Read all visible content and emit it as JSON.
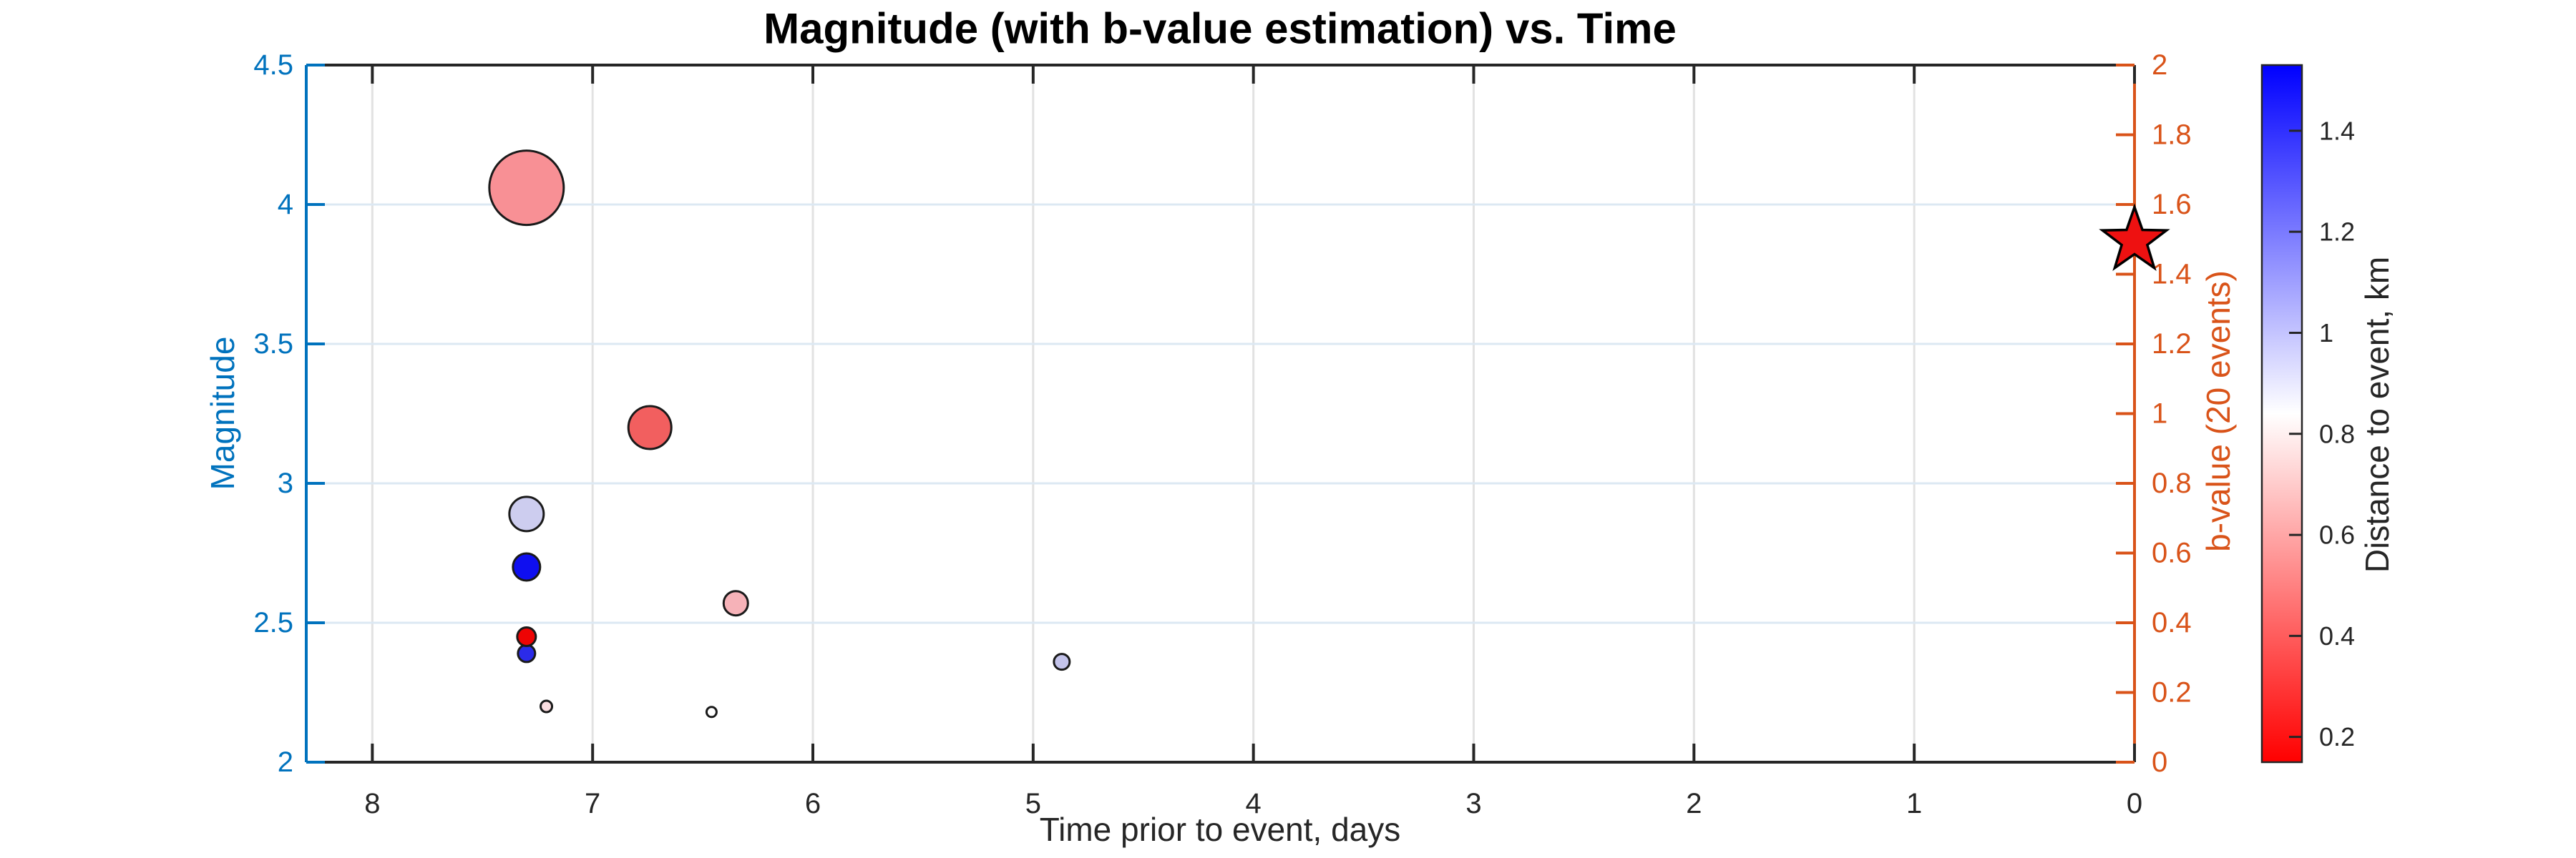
{
  "figure": {
    "background": "#ffffff"
  },
  "chart_data": {
    "type": "scatter",
    "title": "Magnitude (with b-value estimation) vs. Time",
    "title_color": "#000000",
    "xlabel": "Time prior to event, days",
    "xlabel_color": "#262626",
    "x_axis": {
      "lim_left": 8.3,
      "lim_right": 0,
      "reversed": true,
      "axis_color": "#262626",
      "ticks": [
        {
          "v": 8,
          "label": "8"
        },
        {
          "v": 7,
          "label": "7"
        },
        {
          "v": 6,
          "label": "6"
        },
        {
          "v": 5,
          "label": "5"
        },
        {
          "v": 4,
          "label": "4"
        },
        {
          "v": 3,
          "label": "3"
        },
        {
          "v": 2,
          "label": "2"
        },
        {
          "v": 1,
          "label": "1"
        },
        {
          "v": 0,
          "label": "0"
        }
      ]
    },
    "y_axis_left": {
      "label": "Magnitude",
      "lim": [
        2,
        4.5
      ],
      "color": "#0072BD",
      "ticks": [
        {
          "v": 2,
          "label": "2"
        },
        {
          "v": 2.5,
          "label": "2.5"
        },
        {
          "v": 3,
          "label": "3"
        },
        {
          "v": 3.5,
          "label": "3.5"
        },
        {
          "v": 4,
          "label": "4"
        },
        {
          "v": 4.5,
          "label": "4.5"
        }
      ]
    },
    "y_axis_right": {
      "label": "b-value (20 events)",
      "lim": [
        0,
        2
      ],
      "color": "#D95319",
      "ticks": [
        {
          "v": 0,
          "label": "0"
        },
        {
          "v": 0.2,
          "label": "0.2"
        },
        {
          "v": 0.4,
          "label": "0.4"
        },
        {
          "v": 0.6,
          "label": "0.6"
        },
        {
          "v": 0.8,
          "label": "0.8"
        },
        {
          "v": 1,
          "label": "1"
        },
        {
          "v": 1.2,
          "label": "1.2"
        },
        {
          "v": 1.4,
          "label": "1.4"
        },
        {
          "v": 1.6,
          "label": "1.6"
        },
        {
          "v": 1.8,
          "label": "1.8"
        },
        {
          "v": 2,
          "label": "2"
        }
      ]
    },
    "grid": {
      "show": true,
      "horizontal_values": [
        2.5,
        3,
        3.5,
        4
      ],
      "vertical_values": [
        8,
        7,
        6,
        5,
        4,
        3,
        2,
        1
      ],
      "horizontal_color": "#dce8f3",
      "vertical_color": "#e2e2e2"
    },
    "marker_edge_color": "#1a1a1a",
    "points": [
      {
        "time_days": 7.3,
        "magnitude": 4.06,
        "distance_km": 0.55,
        "radius_px": 52,
        "fill": "#f89095"
      },
      {
        "time_days": 6.74,
        "magnitude": 3.2,
        "distance_km": 0.41,
        "radius_px": 30,
        "fill": "#f25f5f"
      },
      {
        "time_days": 7.3,
        "magnitude": 2.89,
        "distance_km": 0.98,
        "radius_px": 24,
        "fill": "#cdcdef"
      },
      {
        "time_days": 7.3,
        "magnitude": 2.7,
        "distance_km": 1.5,
        "radius_px": 19,
        "fill": "#0f0ff0"
      },
      {
        "time_days": 6.35,
        "magnitude": 2.57,
        "distance_km": 0.64,
        "radius_px": 17,
        "fill": "#f6b2b8"
      },
      {
        "time_days": 7.3,
        "magnitude": 2.39,
        "distance_km": 1.41,
        "radius_px": 12,
        "fill": "#2b2be9"
      },
      {
        "time_days": 7.3,
        "magnitude": 2.45,
        "distance_km": 0.16,
        "radius_px": 13,
        "fill": "#ee0404"
      },
      {
        "time_days": 4.87,
        "magnitude": 2.36,
        "distance_km": 1.0,
        "radius_px": 11,
        "fill": "#c3c3ea"
      },
      {
        "time_days": 7.21,
        "magnitude": 2.2,
        "distance_km": 0.75,
        "radius_px": 8,
        "fill": "#fadde0"
      },
      {
        "time_days": 6.46,
        "magnitude": 2.18,
        "distance_km": 0.84,
        "radius_px": 7,
        "fill": "#ffffff"
      }
    ],
    "star": {
      "time_days": 0,
      "magnitude": 3.87,
      "radius_px": 47,
      "fill": "#ee1111",
      "edge": "#000000"
    },
    "colorbar": {
      "label": "Distance to event, km",
      "label_color": "#262626",
      "lim": [
        0.15,
        1.53
      ],
      "colors_top_to_bottom": [
        "#0000ff",
        "#ffffff",
        "#ff0000"
      ],
      "border_color": "#262626",
      "tick_color": "#262626",
      "ticks": [
        {
          "v": 0.2,
          "label": "0.2"
        },
        {
          "v": 0.4,
          "label": "0.4"
        },
        {
          "v": 0.6,
          "label": "0.6"
        },
        {
          "v": 0.8,
          "label": "0.8"
        },
        {
          "v": 1,
          "label": "1"
        },
        {
          "v": 1.2,
          "label": "1.2"
        },
        {
          "v": 1.4,
          "label": "1.4"
        }
      ]
    }
  }
}
